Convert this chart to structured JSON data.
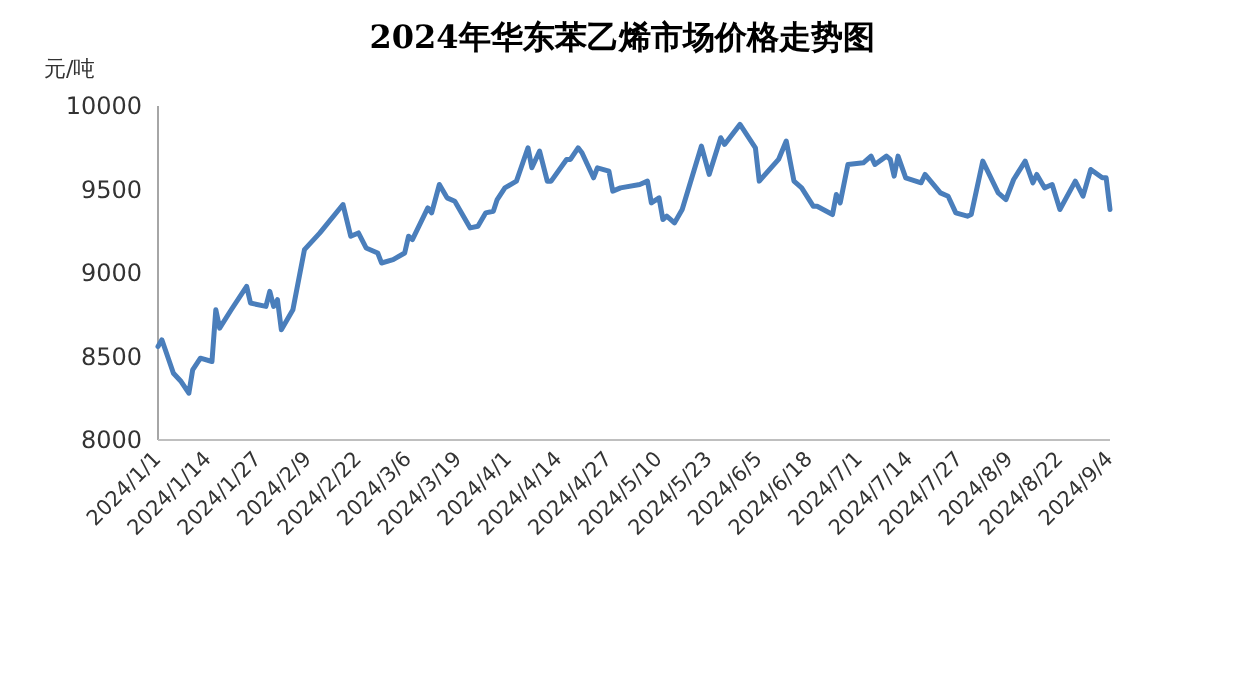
{
  "chart_data": {
    "type": "line",
    "title": "2024年华东苯乙烯市场价格走势图",
    "ylabel": "元/吨",
    "x": [
      "2024-01-01",
      "2024-01-02",
      "2024-01-05",
      "2024-01-07",
      "2024-01-09",
      "2024-01-10",
      "2024-01-12",
      "2024-01-15",
      "2024-01-16",
      "2024-01-17",
      "2024-01-20",
      "2024-01-24",
      "2024-01-25",
      "2024-01-29",
      "2024-01-30",
      "2024-01-31",
      "2024-02-01",
      "2024-02-02",
      "2024-02-05",
      "2024-02-08",
      "2024-02-12",
      "2024-02-18",
      "2024-02-20",
      "2024-02-22",
      "2024-02-24",
      "2024-02-27",
      "2024-02-28",
      "2024-03-02",
      "2024-03-05",
      "2024-03-06",
      "2024-03-07",
      "2024-03-11",
      "2024-03-12",
      "2024-03-14",
      "2024-03-16",
      "2024-03-18",
      "2024-03-22",
      "2024-03-24",
      "2024-03-26",
      "2024-03-28",
      "2024-03-29",
      "2024-03-31",
      "2024-04-03",
      "2024-04-06",
      "2024-04-07",
      "2024-04-09",
      "2024-04-11",
      "2024-04-12",
      "2024-04-16",
      "2024-04-17",
      "2024-04-19",
      "2024-04-20",
      "2024-04-23",
      "2024-04-24",
      "2024-04-27",
      "2024-04-28",
      "2024-04-30",
      "2024-05-05",
      "2024-05-07",
      "2024-05-08",
      "2024-05-10",
      "2024-05-11",
      "2024-05-12",
      "2024-05-14",
      "2024-05-16",
      "2024-05-21",
      "2024-05-23",
      "2024-05-26",
      "2024-05-27",
      "2024-05-31",
      "2024-06-04",
      "2024-06-05",
      "2024-06-10",
      "2024-06-12",
      "2024-06-14",
      "2024-06-16",
      "2024-06-19",
      "2024-06-20",
      "2024-06-24",
      "2024-06-25",
      "2024-06-26",
      "2024-06-28",
      "2024-07-02",
      "2024-07-04",
      "2024-07-05",
      "2024-07-08",
      "2024-07-09",
      "2024-07-10",
      "2024-07-11",
      "2024-07-13",
      "2024-07-17",
      "2024-07-18",
      "2024-07-22",
      "2024-07-24",
      "2024-07-26",
      "2024-07-29",
      "2024-07-30",
      "2024-08-02",
      "2024-08-06",
      "2024-08-08",
      "2024-08-10",
      "2024-08-13",
      "2024-08-15",
      "2024-08-16",
      "2024-08-18",
      "2024-08-20",
      "2024-08-22",
      "2024-08-26",
      "2024-08-28",
      "2024-08-30",
      "2024-09-02",
      "2024-09-03",
      "2024-09-04"
    ],
    "series": [
      {
        "color": "#4a7ebb",
        "values": [
          8560,
          8600,
          8400,
          8350,
          8280,
          8420,
          8490,
          8470,
          8780,
          8670,
          8780,
          8920,
          8820,
          8800,
          8890,
          8800,
          8840,
          8660,
          8780,
          9140,
          9240,
          9410,
          9220,
          9240,
          9150,
          9120,
          9060,
          9080,
          9120,
          9220,
          9200,
          9390,
          9360,
          9530,
          9450,
          9430,
          9270,
          9280,
          9360,
          9370,
          9440,
          9510,
          9550,
          9750,
          9630,
          9730,
          9550,
          9550,
          9680,
          9680,
          9750,
          9720,
          9570,
          9630,
          9610,
          9490,
          9510,
          9530,
          9550,
          9420,
          9450,
          9320,
          9340,
          9300,
          9380,
          9760,
          9590,
          9810,
          9770,
          9890,
          9750,
          9550,
          9680,
          9790,
          9550,
          9510,
          9400,
          9400,
          9350,
          9470,
          9420,
          9650,
          9660,
          9700,
          9650,
          9700,
          9680,
          9580,
          9700,
          9570,
          9540,
          9590,
          9480,
          9460,
          9360,
          9340,
          9350,
          9670,
          9480,
          9440,
          9560,
          9670,
          9540,
          9590,
          9510,
          9530,
          9380,
          9550,
          9460,
          9620,
          9570,
          9570,
          9380
        ]
      }
    ],
    "xlim": [
      "2024-01-01",
      "2024-09-04"
    ],
    "xticks": [
      {
        "value": "2024-01-01",
        "label": "2024/1/1"
      },
      {
        "value": "2024-01-14",
        "label": "2024/1/14"
      },
      {
        "value": "2024-01-27",
        "label": "2024/1/27"
      },
      {
        "value": "2024-02-09",
        "label": "2024/2/9"
      },
      {
        "value": "2024-02-22",
        "label": "2024/2/22"
      },
      {
        "value": "2024-03-06",
        "label": "2024/3/6"
      },
      {
        "value": "2024-03-19",
        "label": "2024/3/19"
      },
      {
        "value": "2024-04-01",
        "label": "2024/4/1"
      },
      {
        "value": "2024-04-14",
        "label": "2024/4/14"
      },
      {
        "value": "2024-04-27",
        "label": "2024/4/27"
      },
      {
        "value": "2024-05-10",
        "label": "2024/5/10"
      },
      {
        "value": "2024-05-23",
        "label": "2024/5/23"
      },
      {
        "value": "2024-06-05",
        "label": "2024/6/5"
      },
      {
        "value": "2024-06-18",
        "label": "2024/6/18"
      },
      {
        "value": "2024-07-01",
        "label": "2024/7/1"
      },
      {
        "value": "2024-07-14",
        "label": "2024/7/14"
      },
      {
        "value": "2024-07-27",
        "label": "2024/7/27"
      },
      {
        "value": "2024-08-09",
        "label": "2024/8/9"
      },
      {
        "value": "2024-08-22",
        "label": "2024/8/22"
      },
      {
        "value": "2024-09-04",
        "label": "2024/9/4"
      }
    ],
    "ylim": [
      8000,
      10000
    ],
    "yticks": [
      8000,
      8500,
      9000,
      9500,
      10000
    ],
    "grid": false,
    "marker": "none",
    "line_style": "solid"
  }
}
